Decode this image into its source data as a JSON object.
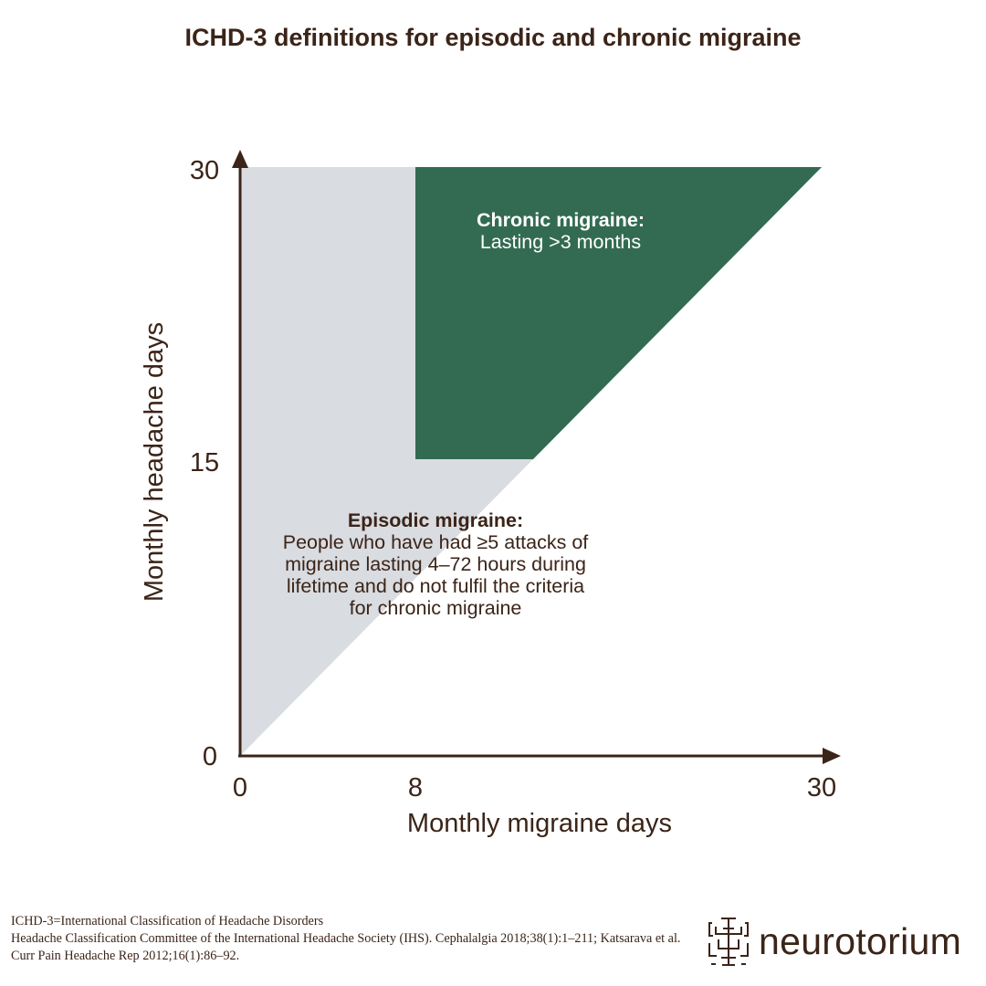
{
  "title": "ICHD-3 definitions for episodic and chronic migraine",
  "chart_data": {
    "type": "area",
    "xlabel": "Monthly migraine days",
    "ylabel": "Monthly headache days",
    "xlim": [
      0,
      30
    ],
    "ylim": [
      0,
      30
    ],
    "x_ticks": [
      "0",
      "8",
      "30"
    ],
    "y_ticks": [
      "0",
      "15",
      "30"
    ],
    "regions": [
      {
        "name": "Episodic migraine",
        "heading": "Episodic migraine:",
        "lines": [
          "People who have had ≥5 attacks of",
          "migraine lasting 4–72 hours during",
          "lifetime and do not fulfil the criteria",
          "for chronic migraine"
        ],
        "color": "#d9dce0",
        "rule": "headache days ≥ migraine days, not chronic"
      },
      {
        "name": "Chronic migraine",
        "heading": "Chronic migraine:",
        "lines": [
          "Lasting >3 months"
        ],
        "color": "#336b52",
        "rule": "migraine days ≥ 8 and headache days ≥ 15"
      }
    ]
  },
  "footnote": {
    "line1": "ICHD-3=International Classification of Headache Disorders",
    "line2": "Headache Classification Committee of the International Headache Society (IHS). Cephalalgia 2018;38(1):1–211; Katsarava et al. Curr Pain Headache Rep 2012;16(1):86–92."
  },
  "logo": {
    "text": "neurotorium"
  },
  "colors": {
    "text": "#3b2418",
    "episodic": "#d9dce0",
    "chronic": "#336b52"
  }
}
